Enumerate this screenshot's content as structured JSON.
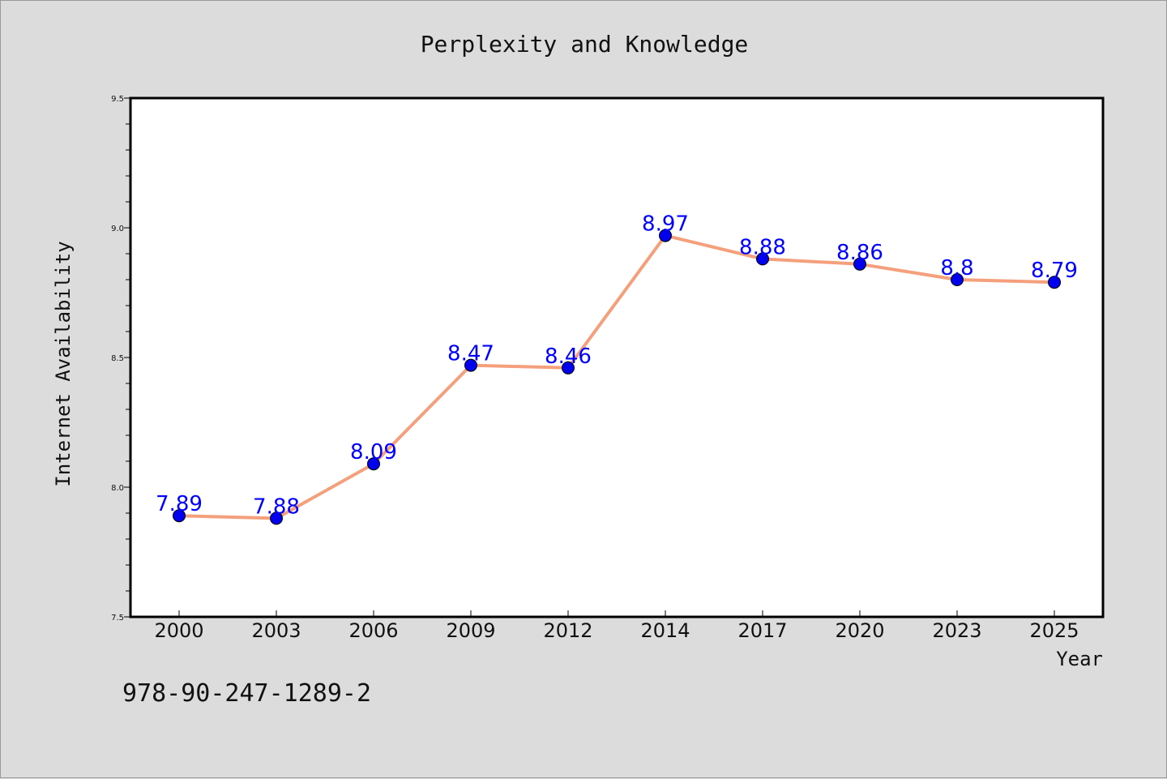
{
  "chart_data": {
    "type": "line",
    "title": "Perplexity and Knowledge",
    "xlabel": "Year",
    "ylabel": "Internet Availability",
    "categories": [
      "2000",
      "2003",
      "2006",
      "2009",
      "2012",
      "2014",
      "2017",
      "2020",
      "2023",
      "2025"
    ],
    "series": [
      {
        "values": [
          7.89,
          7.88,
          8.09,
          8.47,
          8.46,
          8.97,
          8.88,
          8.86,
          8.8,
          8.79
        ]
      }
    ],
    "value_labels": [
      "7.89",
      "7.88",
      "8.09",
      "8.47",
      "8.46",
      "8.97",
      "8.88",
      "8.86",
      "8.8",
      "8.79"
    ],
    "ylim": [
      7.5,
      9.5
    ],
    "yticks": [
      "7.5",
      "8.0",
      "8.5",
      "9.0",
      "9.5"
    ],
    "grid": false,
    "line_color": "#f4a07c",
    "marker_color": "#0000ee",
    "label_color": "#0000ff",
    "footer": "978-90-247-1289-2"
  }
}
